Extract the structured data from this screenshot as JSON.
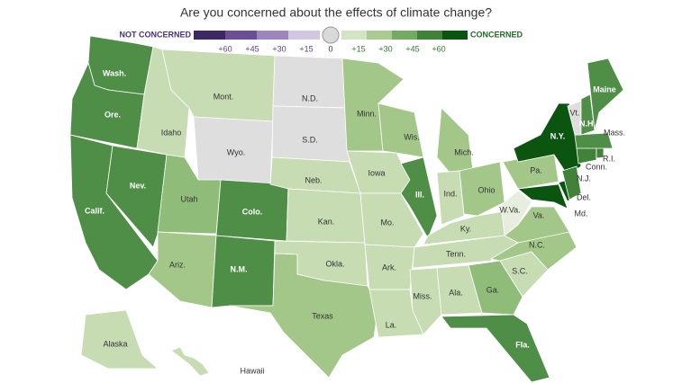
{
  "title": "Are you concerned about the effects of climate change?",
  "legend": {
    "low_label": "NOT CONCERNED",
    "high_label": "CONCERNED",
    "ticks": [
      "+60",
      "+45",
      "+30",
      "+15",
      "0",
      "+15",
      "+30",
      "+45",
      "+60"
    ],
    "low_colors": [
      "#3e2863",
      "#6b4f96",
      "#9c86bd",
      "#d2c7e2"
    ],
    "mid_color": "#d9d9d9",
    "high_colors": [
      "#d3e4c3",
      "#a9cb8f",
      "#74ab63",
      "#3f8238",
      "#0b5511"
    ]
  },
  "states": [
    {
      "label": "Wash.",
      "color": "#4f8e46"
    },
    {
      "label": "Ore.",
      "color": "#4f8e46"
    },
    {
      "label": "Calif.",
      "color": "#4f8e46"
    },
    {
      "label": "Nev.",
      "color": "#4f8e46"
    },
    {
      "label": "Idaho",
      "color": "#c7dcb3"
    },
    {
      "label": "Mont.",
      "color": "#c7dcb3"
    },
    {
      "label": "Wyo.",
      "color": "#dedede"
    },
    {
      "label": "Utah",
      "color": "#8fbc78"
    },
    {
      "label": "Colo.",
      "color": "#4f8e46"
    },
    {
      "label": "Ariz.",
      "color": "#a3c788"
    },
    {
      "label": "N.M.",
      "color": "#4f8e46"
    },
    {
      "label": "N.D.",
      "color": "#dedede"
    },
    {
      "label": "S.D.",
      "color": "#dedede"
    },
    {
      "label": "Neb.",
      "color": "#c7dcb3"
    },
    {
      "label": "Kan.",
      "color": "#c7dcb3"
    },
    {
      "label": "Okla.",
      "color": "#c7dcb3"
    },
    {
      "label": "Texas",
      "color": "#a3c788"
    },
    {
      "label": "Minn.",
      "color": "#a3c788"
    },
    {
      "label": "Iowa",
      "color": "#c7dcb3"
    },
    {
      "label": "Mo.",
      "color": "#c7dcb3"
    },
    {
      "label": "Ark.",
      "color": "#c7dcb3"
    },
    {
      "label": "La.",
      "color": "#c7dcb3"
    },
    {
      "label": "Wis.",
      "color": "#a3c788"
    },
    {
      "label": "Ill.",
      "color": "#4f8e46"
    },
    {
      "label": "Mich.",
      "color": "#a3c788"
    },
    {
      "label": "Ind.",
      "color": "#c7dcb3"
    },
    {
      "label": "Ohio",
      "color": "#a3c788"
    },
    {
      "label": "Ky.",
      "color": "#c7dcb3"
    },
    {
      "label": "Tenn.",
      "color": "#c7dcb3"
    },
    {
      "label": "Miss.",
      "color": "#c7dcb3"
    },
    {
      "label": "Ala.",
      "color": "#c7dcb3"
    },
    {
      "label": "Ga.",
      "color": "#8fbc78"
    },
    {
      "label": "Fla.",
      "color": "#4f8e46"
    },
    {
      "label": "S.C.",
      "color": "#c7dcb3"
    },
    {
      "label": "N.C.",
      "color": "#a3c788"
    },
    {
      "label": "Va.",
      "color": "#a3c788"
    },
    {
      "label": "W.Va.",
      "color": "#e7eee0"
    },
    {
      "label": "Pa.",
      "color": "#a3c788"
    },
    {
      "label": "N.Y.",
      "color": "#0b5511"
    },
    {
      "label": "Md.",
      "color": "#0b5511"
    },
    {
      "label": "Del.",
      "color": "#0b5511"
    },
    {
      "label": "N.J.",
      "color": "#3f8238"
    },
    {
      "label": "Conn.",
      "color": "#3f8238"
    },
    {
      "label": "R.I.",
      "color": "#3f8238"
    },
    {
      "label": "Mass.",
      "color": "#4f8e46"
    },
    {
      "label": "Vt.",
      "color": "#dedede"
    },
    {
      "label": "N.H.",
      "color": "#4f8e46"
    },
    {
      "label": "Maine",
      "color": "#4f8e46"
    },
    {
      "label": "Alaska",
      "color": "#c7dcb3"
    },
    {
      "label": "Hawaii",
      "color": "#c7dcb3"
    }
  ]
}
